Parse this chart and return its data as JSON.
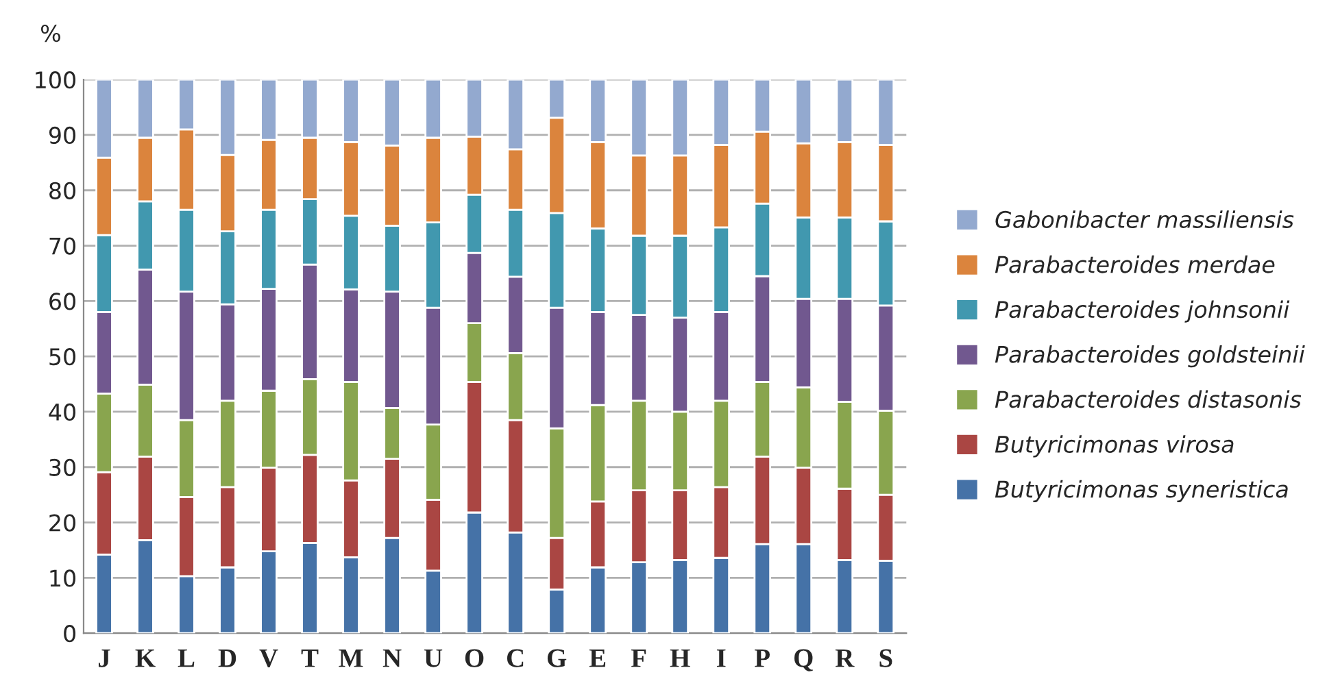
{
  "chart_data": {
    "type": "bar",
    "stacked": true,
    "ylabel": "%",
    "categories": [
      "J",
      "K",
      "L",
      "D",
      "V",
      "T",
      "M",
      "N",
      "U",
      "O",
      "C",
      "G",
      "E",
      "F",
      "H",
      "I",
      "P",
      "Q",
      "R",
      "S"
    ],
    "series": [
      {
        "name": "Butyricimonas syneristica",
        "color": "#4572a7",
        "values": [
          14.2,
          16.8,
          10.3,
          11.9,
          14.8,
          16.3,
          13.7,
          17.2,
          11.3,
          21.8,
          18.2,
          7.9,
          11.9,
          12.8,
          13.2,
          13.6,
          16.1,
          16.1,
          13.2,
          13.1
        ]
      },
      {
        "name": "Butyricimonas virosa",
        "color": "#aa4643",
        "values": [
          14.9,
          15.1,
          14.3,
          14.5,
          15.1,
          15.9,
          13.9,
          14.3,
          12.8,
          23.6,
          20.3,
          9.3,
          11.9,
          13.0,
          12.6,
          12.8,
          15.8,
          13.8,
          12.9,
          11.9
        ]
      },
      {
        "name": "Parabacteroides distasonis",
        "color": "#89a54e",
        "values": [
          14.2,
          13.0,
          13.9,
          15.6,
          13.9,
          13.7,
          17.8,
          9.2,
          13.6,
          10.6,
          12.1,
          19.8,
          17.4,
          16.2,
          14.2,
          15.6,
          13.5,
          14.5,
          15.7,
          15.2
        ]
      },
      {
        "name": "Parabacteroides goldsteinii",
        "color": "#71588f",
        "values": [
          14.7,
          20.8,
          23.2,
          17.4,
          18.4,
          20.7,
          16.7,
          21.0,
          21.1,
          12.7,
          13.8,
          21.8,
          16.8,
          15.5,
          17.0,
          16.0,
          19.1,
          16.0,
          18.6,
          19.0
        ]
      },
      {
        "name": "Parabacteroides johnsonii",
        "color": "#4198af",
        "values": [
          13.9,
          12.3,
          14.8,
          13.2,
          14.3,
          11.8,
          13.3,
          11.9,
          15.4,
          10.5,
          12.1,
          17.1,
          15.1,
          14.3,
          14.8,
          15.3,
          13.1,
          14.7,
          14.7,
          15.2
        ]
      },
      {
        "name": "Parabacteroides merdae",
        "color": "#db843d",
        "values": [
          14.0,
          11.5,
          14.5,
          13.8,
          12.6,
          11.1,
          13.3,
          14.5,
          15.3,
          10.5,
          10.9,
          17.2,
          15.6,
          14.5,
          14.5,
          14.9,
          13.0,
          13.4,
          13.6,
          13.8
        ]
      },
      {
        "name": "Gabonibacter massiliensis",
        "color": "#93a9cf",
        "values": [
          14.1,
          10.5,
          9.0,
          13.6,
          10.9,
          10.5,
          11.3,
          11.9,
          10.5,
          10.3,
          12.6,
          6.9,
          11.3,
          13.7,
          13.7,
          11.8,
          9.4,
          11.5,
          11.3,
          11.8
        ]
      }
    ],
    "ylim": [
      0,
      100
    ],
    "yticks": [
      0,
      10,
      20,
      30,
      40,
      50,
      60,
      70,
      80,
      90,
      100
    ],
    "grid": "y",
    "legend": "right"
  }
}
